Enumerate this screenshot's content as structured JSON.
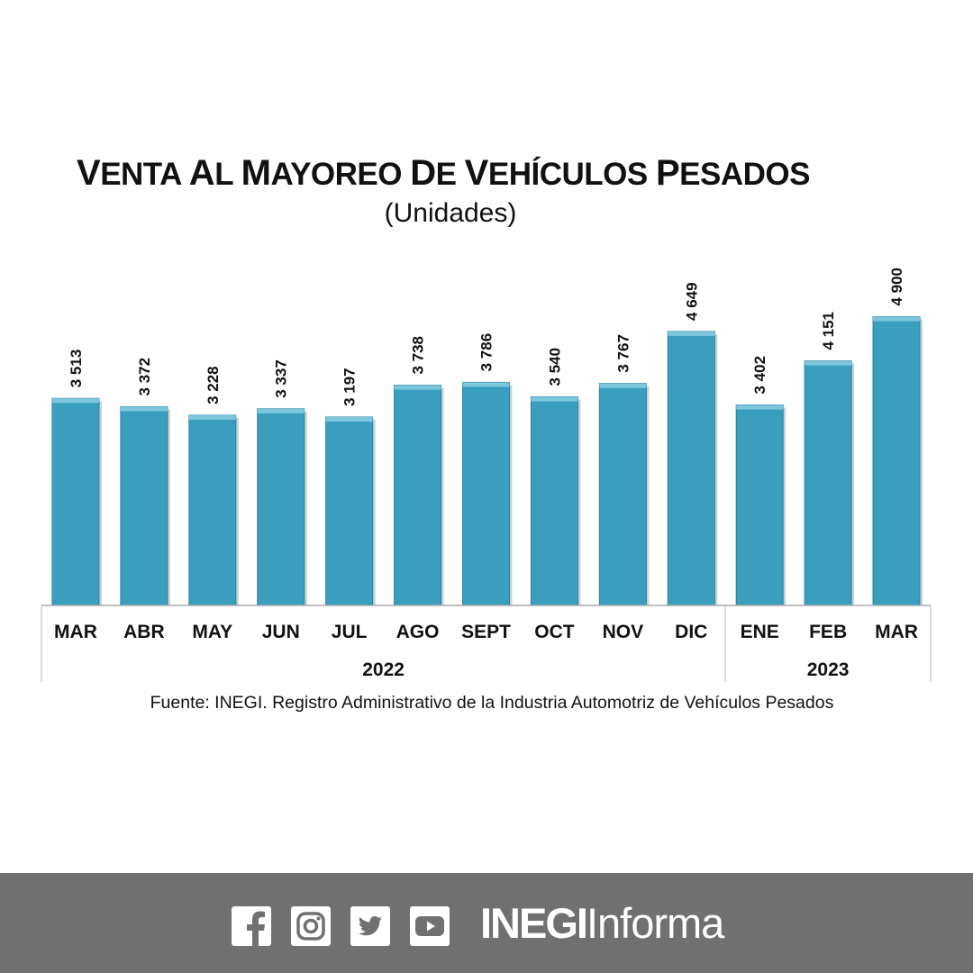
{
  "chart_data": {
    "type": "bar",
    "title": "VENTA AL MAYOREO DE VEHÍCULOS PESADOS",
    "subtitle": "(Unidades)",
    "categories": [
      "MAR",
      "ABR",
      "MAY",
      "JUN",
      "JUL",
      "AGO",
      "SEPT",
      "OCT",
      "NOV",
      "DIC",
      "ENE",
      "FEB",
      "MAR"
    ],
    "values": [
      3513,
      3372,
      3228,
      3337,
      3197,
      3738,
      3786,
      3540,
      3767,
      4649,
      3402,
      4151,
      4900
    ],
    "data_labels": [
      "3 513",
      "3 372",
      "3 228",
      "3 337",
      "3 197",
      "3 738",
      "3 786",
      "3 540",
      "3 767",
      "4 649",
      "3 402",
      "4 151",
      "4 900"
    ],
    "year_groups": [
      {
        "label": "2022",
        "count": 10
      },
      {
        "label": "2023",
        "count": 3
      }
    ],
    "ylim": [
      0,
      5000
    ],
    "grid": false,
    "bar_color": "#3a9fbf",
    "source": "Fuente: INEGI. Registro Administrativo de la Industria Automotriz de Vehículos Pesados"
  },
  "footer": {
    "icons": [
      "facebook-icon",
      "instagram-icon",
      "twitter-icon",
      "youtube-icon"
    ],
    "brand_strong": "INEGI",
    "brand_light": "Informa",
    "background": "#707070"
  }
}
